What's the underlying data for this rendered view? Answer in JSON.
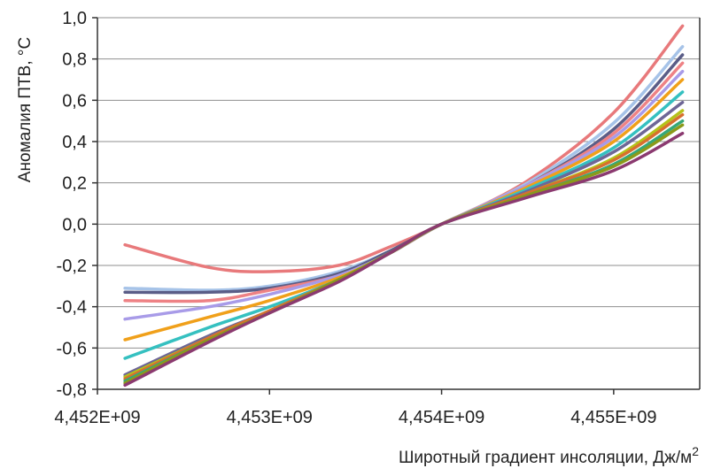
{
  "chart_data": {
    "type": "line",
    "title": "",
    "xlabel": "Широтный градиент инсоляции, Дж/м",
    "xlabel_sup": "2",
    "ylabel": "Аномалия ПТВ, °С",
    "xlim": [
      4452000000,
      4455500000
    ],
    "ylim": [
      -0.8,
      1.0
    ],
    "x_ticks": [
      4452000000,
      4453000000,
      4454000000,
      4455000000
    ],
    "x_tick_labels": [
      "4,452E+09",
      "4,453E+09",
      "4,454E+09",
      "4,455E+09"
    ],
    "y_ticks": [
      -0.8,
      -0.6,
      -0.4,
      -0.2,
      0.0,
      0.2,
      0.4,
      0.6,
      0.8,
      1.0
    ],
    "y_tick_labels": [
      "-0,8",
      "-0,6",
      "-0,4",
      "-0,2",
      "0,0",
      "0,2",
      "0,4",
      "0,6",
      "0,8",
      "1,0"
    ],
    "grid": "horizontal",
    "legend": "none",
    "x": [
      4452160000,
      4452650000,
      4453000000,
      4453400000,
      4453700000,
      4454000000,
      4454500000,
      4455000000,
      4455400000
    ],
    "series": [
      {
        "color": "#e8797b",
        "values": [
          -0.1,
          -0.21,
          -0.23,
          -0.2,
          -0.11,
          0.0,
          0.21,
          0.54,
          0.96
        ]
      },
      {
        "color": "#a6c3e8",
        "values": [
          -0.31,
          -0.32,
          -0.3,
          -0.23,
          -0.13,
          0.0,
          0.2,
          0.49,
          0.86
        ]
      },
      {
        "color": "#5a5d87",
        "values": [
          -0.33,
          -0.33,
          -0.31,
          -0.24,
          -0.13,
          0.0,
          0.19,
          0.46,
          0.82
        ]
      },
      {
        "color": "#ee8285",
        "values": [
          -0.37,
          -0.37,
          -0.32,
          -0.25,
          -0.14,
          0.0,
          0.19,
          0.44,
          0.78
        ]
      },
      {
        "color": "#a89be8",
        "values": [
          -0.46,
          -0.4,
          -0.34,
          -0.25,
          -0.14,
          0.0,
          0.19,
          0.42,
          0.74
        ]
      },
      {
        "color": "#f0a01a",
        "values": [
          -0.56,
          -0.45,
          -0.37,
          -0.26,
          -0.14,
          0.0,
          0.18,
          0.4,
          0.7
        ]
      },
      {
        "color": "#35c0c0",
        "values": [
          -0.65,
          -0.5,
          -0.4,
          -0.27,
          -0.14,
          0.0,
          0.17,
          0.37,
          0.64
        ]
      },
      {
        "color": "#6e6696",
        "values": [
          -0.73,
          -0.54,
          -0.42,
          -0.27,
          -0.14,
          0.0,
          0.16,
          0.35,
          0.59
        ]
      },
      {
        "color": "#b5c21a",
        "values": [
          -0.74,
          -0.55,
          -0.42,
          -0.27,
          -0.14,
          0.0,
          0.15,
          0.32,
          0.55
        ]
      },
      {
        "color": "#d76f2e",
        "values": [
          -0.75,
          -0.55,
          -0.42,
          -0.27,
          -0.14,
          0.0,
          0.15,
          0.31,
          0.53
        ]
      },
      {
        "color": "#35a878",
        "values": [
          -0.76,
          -0.56,
          -0.43,
          -0.27,
          -0.14,
          0.0,
          0.14,
          0.29,
          0.5
        ]
      },
      {
        "color": "#8a9a1a",
        "values": [
          -0.77,
          -0.56,
          -0.43,
          -0.27,
          -0.14,
          0.0,
          0.14,
          0.28,
          0.48
        ]
      },
      {
        "color": "#8b3a70",
        "values": [
          -0.78,
          -0.57,
          -0.43,
          -0.28,
          -0.14,
          0.0,
          0.13,
          0.26,
          0.44
        ]
      }
    ]
  }
}
